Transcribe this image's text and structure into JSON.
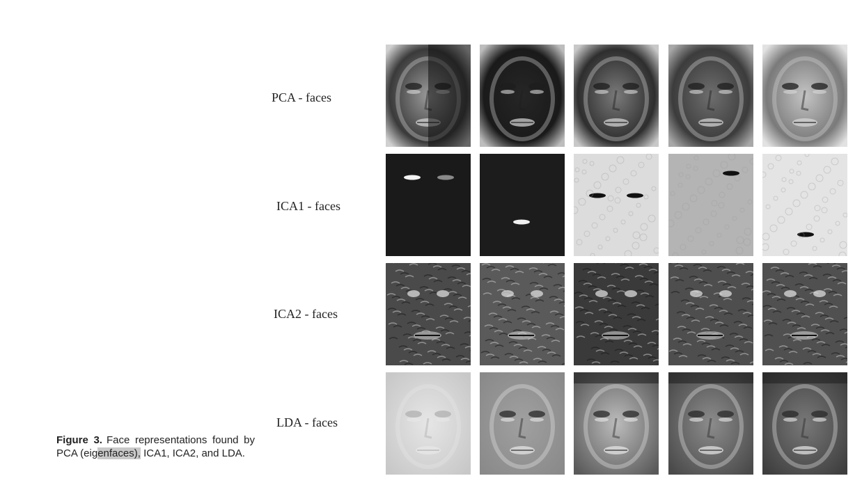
{
  "figure": {
    "rows": [
      {
        "label": "PCA - faces",
        "style": "pca"
      },
      {
        "label": "ICA1 - faces",
        "style": "ica1"
      },
      {
        "label": "ICA2 - faces",
        "style": "ica2"
      },
      {
        "label": "LDA - faces",
        "style": "lda"
      }
    ],
    "caption": {
      "number": "Figure 3.",
      "text_before_highlight": "Face representations found by PCA (eig",
      "highlight": "enfaces),",
      "text_after_highlight": " ICA1, ICA2, and LDA."
    }
  }
}
